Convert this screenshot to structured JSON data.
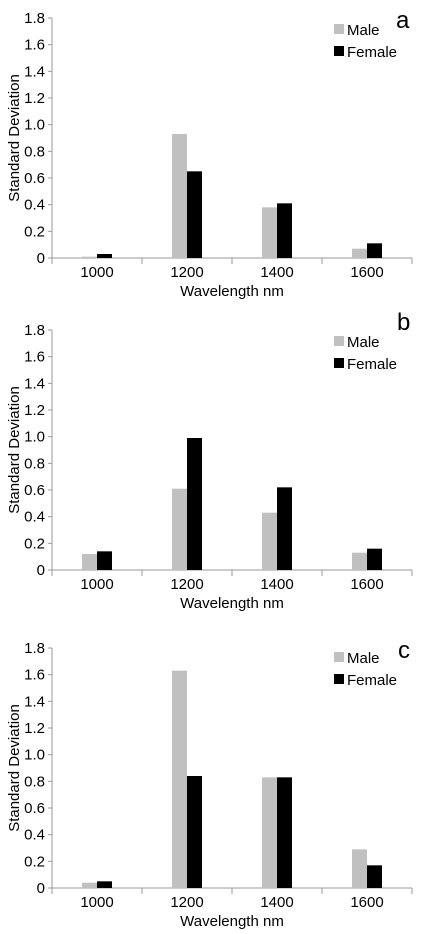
{
  "colors": {
    "male": "#c0c0c0",
    "female": "#000000",
    "axis": "#999999"
  },
  "chart_data": [
    {
      "type": "bar",
      "panel": "a",
      "categories": [
        "1000",
        "1200",
        "1400",
        "1600"
      ],
      "series": [
        {
          "name": "Male",
          "values": [
            0.01,
            0.93,
            0.38,
            0.07
          ]
        },
        {
          "name": "Female",
          "values": [
            0.03,
            0.65,
            0.41,
            0.11
          ]
        }
      ],
      "xlabel": "Wavelength nm",
      "ylabel": "Standard Deviation",
      "ylim": [
        0,
        1.8
      ],
      "yticks": [
        "0",
        "0.2",
        "0.4",
        "0.6",
        "0.8",
        "1.0",
        "1.2",
        "1.4",
        "1.6",
        "1.8"
      ],
      "legend": "top-right",
      "grid": false
    },
    {
      "type": "bar",
      "panel": "b",
      "categories": [
        "1000",
        "1200",
        "1400",
        "1600"
      ],
      "series": [
        {
          "name": "Male",
          "values": [
            0.12,
            0.61,
            0.43,
            0.13
          ]
        },
        {
          "name": "Female",
          "values": [
            0.14,
            0.99,
            0.62,
            0.16
          ]
        }
      ],
      "xlabel": "Wavelength nm",
      "ylabel": "Standard Deviation",
      "ylim": [
        0,
        1.8
      ],
      "yticks": [
        "0",
        "0.2",
        "0.4",
        "0.6",
        "0.8",
        "1.0",
        "1.2",
        "1.4",
        "1.6",
        "1.8"
      ],
      "legend": "top-right",
      "grid": false
    },
    {
      "type": "bar",
      "panel": "c",
      "categories": [
        "1000",
        "1200",
        "1400",
        "1600"
      ],
      "series": [
        {
          "name": "Male",
          "values": [
            0.04,
            1.63,
            0.83,
            0.29
          ]
        },
        {
          "name": "Female",
          "values": [
            0.05,
            0.84,
            0.83,
            0.17
          ]
        }
      ],
      "xlabel": "Wavelength nm",
      "ylabel": "Standard Deviation",
      "ylim": [
        0,
        1.8
      ],
      "yticks": [
        "0",
        "0.2",
        "0.4",
        "0.6",
        "0.8",
        "1.0",
        "1.2",
        "1.4",
        "1.6",
        "1.8"
      ],
      "legend": "top-right",
      "grid": false
    }
  ]
}
